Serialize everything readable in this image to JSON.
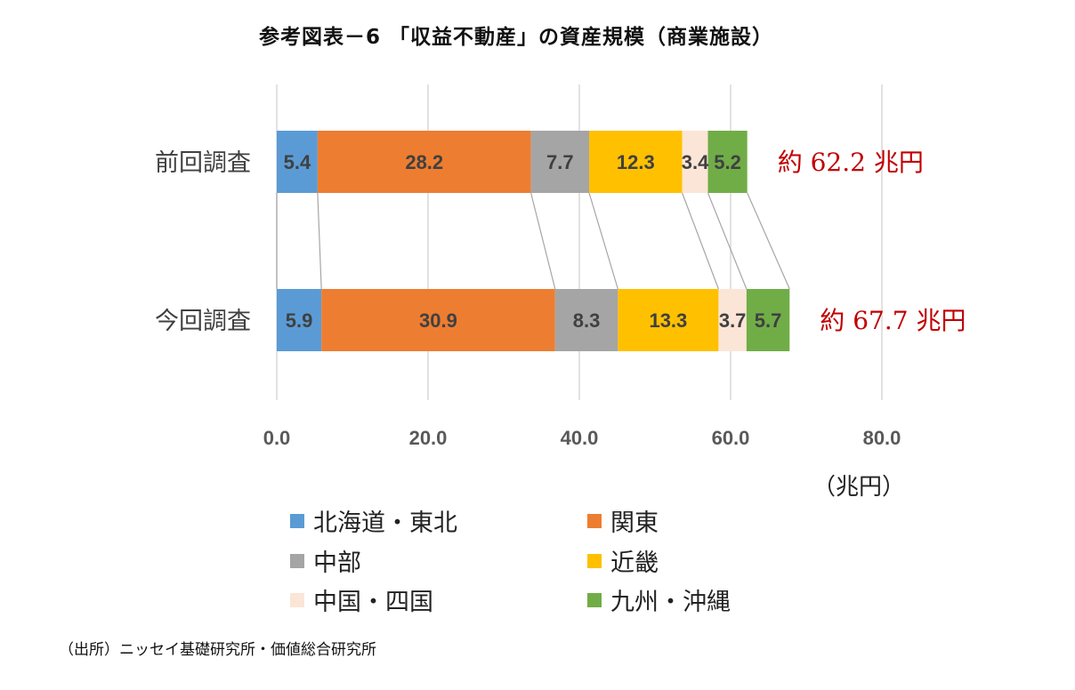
{
  "title": "参考図表－6 「収益不動産」の資産規模（商業施設）",
  "source_note": "（出所）ニッセイ基礎研究所・価値総合研究所",
  "chart_data": {
    "type": "bar",
    "orientation": "horizontal",
    "stacked": true,
    "categories": [
      "前回調査",
      "今回調査"
    ],
    "series": [
      {
        "name": "北海道・東北",
        "color": "#5B9BD5",
        "values": [
          5.4,
          5.9
        ]
      },
      {
        "name": "関東",
        "color": "#ED7D31",
        "values": [
          28.2,
          30.9
        ]
      },
      {
        "name": "中部",
        "color": "#A5A5A5",
        "values": [
          7.7,
          8.3
        ]
      },
      {
        "name": "近畿",
        "color": "#FFC000",
        "values": [
          12.3,
          13.3
        ]
      },
      {
        "name": "中国・四国",
        "color": "#FBE5D6",
        "values": [
          3.4,
          3.7
        ]
      },
      {
        "name": "九州・沖縄",
        "color": "#70AD47",
        "values": [
          5.2,
          5.7
        ]
      }
    ],
    "totals_labels": [
      "約 62.2 兆円",
      "約 67.7 兆円"
    ],
    "totals_color": "#C00000",
    "x_ticks": [
      "0.0",
      "20.0",
      "40.0",
      "60.0",
      "80.0"
    ],
    "x_tick_values": [
      0,
      20,
      40,
      60,
      80
    ],
    "x_unit": "（兆円）",
    "xlim": [
      0,
      80
    ],
    "grid": true,
    "legend_position": "bottom"
  }
}
